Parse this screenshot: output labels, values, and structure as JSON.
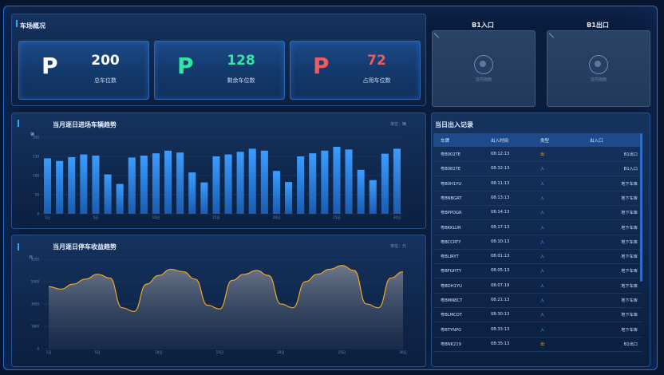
{
  "overview": {
    "title": "车场概况",
    "stats": [
      {
        "letter": "P",
        "value": "200",
        "label": "总车位数",
        "color": "#ffffff"
      },
      {
        "letter": "P",
        "value": "128",
        "label": "剩余车位数",
        "color": "#2ee8a0"
      },
      {
        "letter": "P",
        "value": "72",
        "label": "占用车位数",
        "color": "#f05a5a"
      }
    ]
  },
  "cameras": [
    {
      "title": "B1入口",
      "status": "监控画面"
    },
    {
      "title": "B1出口",
      "status": "监控画面"
    }
  ],
  "traffic_chart": {
    "title": "当月逐日进场车辆趋势",
    "unit": "单位：辆"
  },
  "revenue_chart": {
    "title": "当月逐日停车收益趋势",
    "unit": "单位：元"
  },
  "chart_data": [
    {
      "type": "bar",
      "title": "当月逐日进场车辆趋势",
      "ylabel": "辆",
      "yticks": [
        "0",
        "50",
        "100",
        "150",
        "200"
      ],
      "ylim": [
        0,
        200
      ],
      "x_tick_labels": [
        "1日",
        "5日",
        "10日",
        "15日",
        "20日",
        "25日",
        "30日"
      ],
      "values": [
        145,
        138,
        148,
        155,
        152,
        103,
        78,
        147,
        152,
        158,
        165,
        160,
        108,
        82,
        150,
        155,
        162,
        170,
        165,
        112,
        83,
        150,
        158,
        165,
        175,
        168,
        115,
        88,
        157,
        170
      ],
      "color": "#2f86e6"
    },
    {
      "type": "area",
      "title": "当月逐日停车收益趋势",
      "ylabel": "元",
      "yticks": [
        "0",
        "1800",
        "3600",
        "5400",
        "7200"
      ],
      "ylim": [
        0,
        7200
      ],
      "x_tick_labels": [
        "1日",
        "5日",
        "10日",
        "15日",
        "20日",
        "25日",
        "30日"
      ],
      "values": [
        5000,
        4800,
        5200,
        5600,
        6000,
        5700,
        3300,
        3000,
        5200,
        5900,
        6400,
        6200,
        5600,
        3500,
        3200,
        5500,
        6000,
        6300,
        5900,
        3600,
        3300,
        5400,
        6000,
        6400,
        6700,
        6300,
        3600,
        3300,
        5700,
        6200
      ],
      "color": "#f0a623"
    }
  ],
  "records": {
    "title": "当日出入记录",
    "columns": [
      "车牌",
      "出入时间",
      "类型",
      "出入口"
    ],
    "rows": [
      [
        "粤B002TE",
        "08:12:13",
        "出",
        "B1出口"
      ],
      [
        "粤B081TE",
        "08:32:13",
        "入",
        "B1入口"
      ],
      [
        "粤B0H1YU",
        "08:11:13",
        "入",
        "地下车库"
      ],
      [
        "粤BNBGRT",
        "08:13:13",
        "入",
        "地下车库"
      ],
      [
        "粤BPPDGR",
        "08:14:13",
        "入",
        "地下车库"
      ],
      [
        "粤BKKLUR",
        "08:17:13",
        "入",
        "地下车库"
      ],
      [
        "粤BCCRTY",
        "08:10:13",
        "入",
        "地下车库"
      ],
      [
        "粤BLIRYT",
        "08:01:13",
        "入",
        "地下车库"
      ],
      [
        "粤BFGHTY",
        "08:05:13",
        "入",
        "地下车库"
      ],
      [
        "粤BDH1YU",
        "08:07:19",
        "入",
        "地下车库"
      ],
      [
        "粤BMNBCT",
        "08:21:13",
        "入",
        "地下车库"
      ],
      [
        "粤BLMCDT",
        "08:30:13",
        "入",
        "地下车库"
      ],
      [
        "粤BTYNPG",
        "08:33:13",
        "入",
        "地下车库"
      ],
      [
        "粤BNK219",
        "08:35:13",
        "出",
        "B1出口"
      ]
    ],
    "type_colors": {
      "出": "#f0a623",
      "入": "#3aa0ff"
    }
  }
}
